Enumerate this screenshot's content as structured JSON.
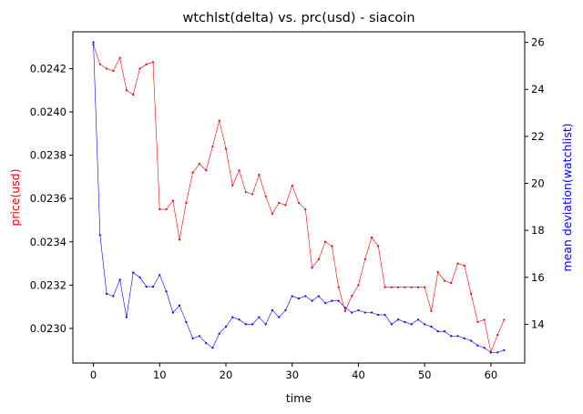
{
  "chart_data": {
    "type": "line",
    "title": "wtchlst(delta) vs. prc(usd) - siacoin",
    "xlabel": "time",
    "ylabel_left": "price(usd)",
    "ylabel_right": "mean deviation(watchlist)",
    "xlim": [
      -3.1,
      65.1
    ],
    "ylim_left": [
      0.02284,
      0.02437
    ],
    "ylim_right": [
      12.35,
      26.45
    ],
    "x_ticks": [
      0,
      10,
      20,
      30,
      40,
      50,
      60
    ],
    "y_ticks_left": [
      0.023,
      0.0232,
      0.0234,
      0.0236,
      0.0238,
      0.024,
      0.0242
    ],
    "y_ticks_left_labels": [
      "0.0230",
      "0.0232",
      "0.0234",
      "0.0236",
      "0.0238",
      "0.0240",
      "0.0242"
    ],
    "y_ticks_right": [
      14,
      16,
      18,
      20,
      22,
      24,
      26
    ],
    "grid": false,
    "x": [
      0,
      1,
      2,
      3,
      4,
      5,
      6,
      7,
      8,
      9,
      10,
      11,
      12,
      13,
      14,
      15,
      16,
      17,
      18,
      19,
      20,
      21,
      22,
      23,
      24,
      25,
      26,
      27,
      28,
      29,
      30,
      31,
      32,
      33,
      34,
      35,
      36,
      37,
      38,
      39,
      40,
      41,
      42,
      43,
      44,
      45,
      46,
      47,
      48,
      49,
      50,
      51,
      52,
      53,
      54,
      55,
      56,
      57,
      58,
      59,
      60,
      61,
      62
    ],
    "series": [
      {
        "axis": "left",
        "color": "#ff0000",
        "values": [
          0.02431,
          0.02422,
          0.0242,
          0.02419,
          0.02425,
          0.0241,
          0.02408,
          0.0242,
          0.02422,
          0.02423,
          0.02355,
          0.02355,
          0.02359,
          0.02341,
          0.02358,
          0.02372,
          0.02376,
          0.02373,
          0.02384,
          0.02396,
          0.02383,
          0.02366,
          0.02373,
          0.02363,
          0.02362,
          0.02371,
          0.02361,
          0.02353,
          0.02358,
          0.02357,
          0.02366,
          0.02358,
          0.02355,
          0.02328,
          0.02332,
          0.0234,
          0.02338,
          0.02319,
          0.02308,
          0.02315,
          0.0232,
          0.02332,
          0.02342,
          0.02338,
          0.02319,
          0.02319,
          0.02319,
          0.02319,
          0.02319,
          0.02319,
          0.02319,
          0.02308,
          0.02326,
          0.02322,
          0.02321,
          0.0233,
          0.02329,
          0.02316,
          0.02303,
          0.02304,
          0.02289,
          0.02297,
          0.02304
        ]
      },
      {
        "axis": "right",
        "color": "#0000ff",
        "values": [
          26.0,
          17.8,
          15.3,
          15.2,
          15.9,
          14.3,
          16.2,
          16.0,
          15.6,
          15.6,
          16.1,
          15.4,
          14.5,
          14.8,
          14.1,
          13.4,
          13.5,
          13.2,
          13.0,
          13.6,
          13.9,
          14.3,
          14.2,
          14.0,
          14.0,
          14.3,
          14.0,
          14.6,
          14.3,
          14.6,
          15.2,
          15.1,
          15.2,
          15.0,
          15.2,
          14.9,
          15.0,
          15.0,
          14.7,
          14.5,
          14.6,
          14.5,
          14.5,
          14.4,
          14.4,
          14.0,
          14.2,
          14.1,
          14.0,
          14.2,
          14.0,
          13.9,
          13.7,
          13.7,
          13.5,
          13.5,
          13.4,
          13.3,
          13.1,
          13.0,
          12.8,
          12.8,
          12.9
        ]
      }
    ]
  }
}
